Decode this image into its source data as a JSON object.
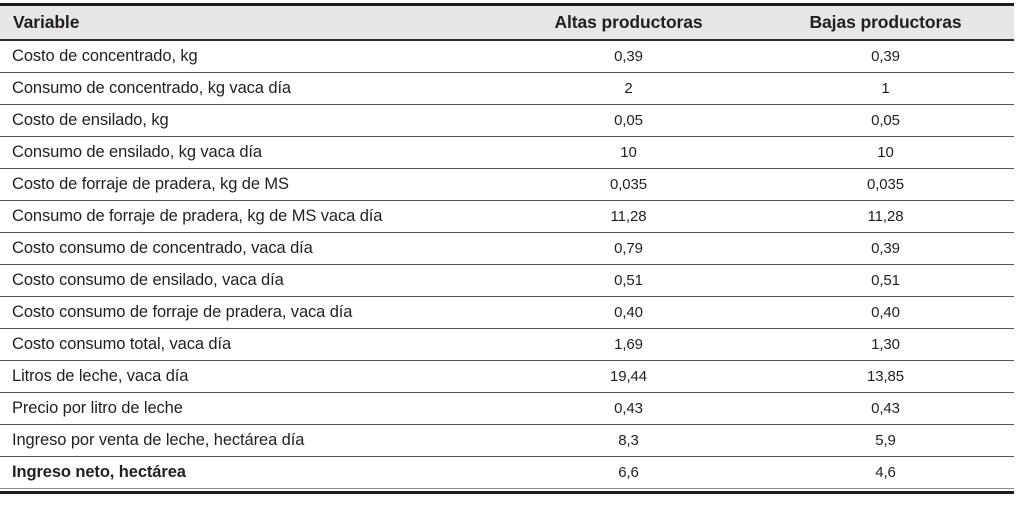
{
  "table": {
    "columns": [
      "Variable",
      "Altas productoras",
      "Bajas productoras"
    ],
    "rows": [
      {
        "variable": "Costo de concentrado, kg",
        "altas": "0,39",
        "bajas": "0,39",
        "bold": false
      },
      {
        "variable": "Consumo de concentrado, kg vaca día",
        "altas": "2",
        "bajas": "1",
        "bold": false
      },
      {
        "variable": "Costo de ensilado, kg",
        "altas": "0,05",
        "bajas": "0,05",
        "bold": false
      },
      {
        "variable": "Consumo de ensilado, kg vaca día",
        "altas": "10",
        "bajas": "10",
        "bold": false
      },
      {
        "variable": "Costo de forraje de pradera, kg de MS",
        "altas": "0,035",
        "bajas": "0,035",
        "bold": false
      },
      {
        "variable": "Consumo de forraje de pradera, kg de MS vaca día",
        "altas": "11,28",
        "bajas": "11,28",
        "bold": false
      },
      {
        "variable": "Costo consumo de concentrado, vaca día",
        "altas": "0,79",
        "bajas": "0,39",
        "bold": false
      },
      {
        "variable": "Costo consumo de ensilado, vaca día",
        "altas": "0,51",
        "bajas": "0,51",
        "bold": false
      },
      {
        "variable": "Costo consumo de forraje de pradera, vaca día",
        "altas": "0,40",
        "bajas": "0,40",
        "bold": false
      },
      {
        "variable": "Costo consumo total, vaca día",
        "altas": "1,69",
        "bajas": "1,30",
        "bold": false
      },
      {
        "variable": "Litros de leche, vaca día",
        "altas": "19,44",
        "bajas": "13,85",
        "bold": false
      },
      {
        "variable": "Precio por litro de leche",
        "altas": "0,43",
        "bajas": "0,43",
        "bold": false
      },
      {
        "variable": "Ingreso por venta de leche, hectárea día",
        "altas": "8,3",
        "bajas": "5,9",
        "bold": false
      },
      {
        "variable": "Ingreso neto, hectárea",
        "altas": "6,6",
        "bajas": "4,6",
        "bold": true
      }
    ]
  },
  "colors": {
    "header_bg": "#e7e7e7",
    "text": "#231f20",
    "rule_heavy": "#1c1c1c",
    "rule_row": "#555555"
  }
}
